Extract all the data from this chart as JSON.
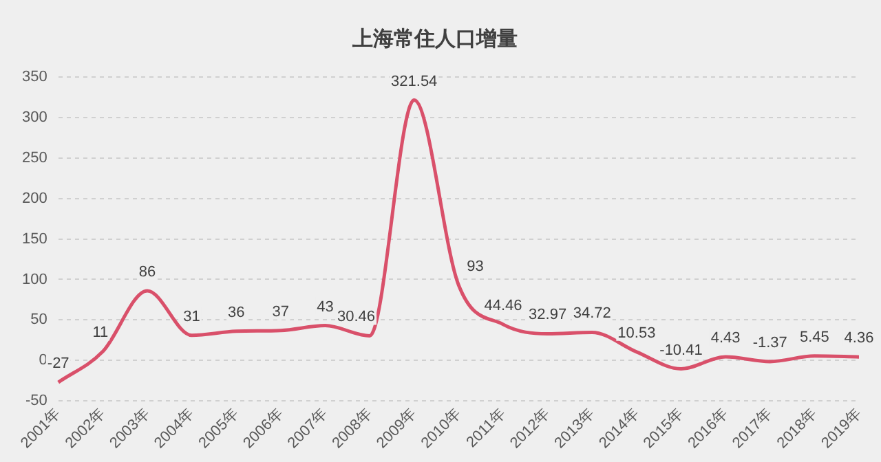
{
  "chart_data": {
    "type": "line",
    "title": "上海常住人口增量",
    "categories": [
      "2001年",
      "2002年",
      "2003年",
      "2004年",
      "2005年",
      "2006年",
      "2007年",
      "2008年",
      "2009年",
      "2010年",
      "2011年",
      "2012年",
      "2013年",
      "2014年",
      "2015年",
      "2016年",
      "2017年",
      "2018年",
      "2019年"
    ],
    "series": [
      {
        "color": "#d9506a",
        "values": [
          -27,
          11,
          86,
          31,
          36,
          37,
          43,
          30.46,
          321.54,
          93,
          44.46,
          32.97,
          34.72,
          10.53,
          -10.41,
          4.43,
          -1.37,
          5.45,
          4.36
        ]
      }
    ],
    "ylim": [
      -50,
      350
    ],
    "yticks": [
      -50,
      0,
      50,
      100,
      150,
      200,
      250,
      300,
      350
    ],
    "grid": "y",
    "legend": false,
    "marker": "none",
    "line_style": "solid",
    "data_labels": true
  }
}
